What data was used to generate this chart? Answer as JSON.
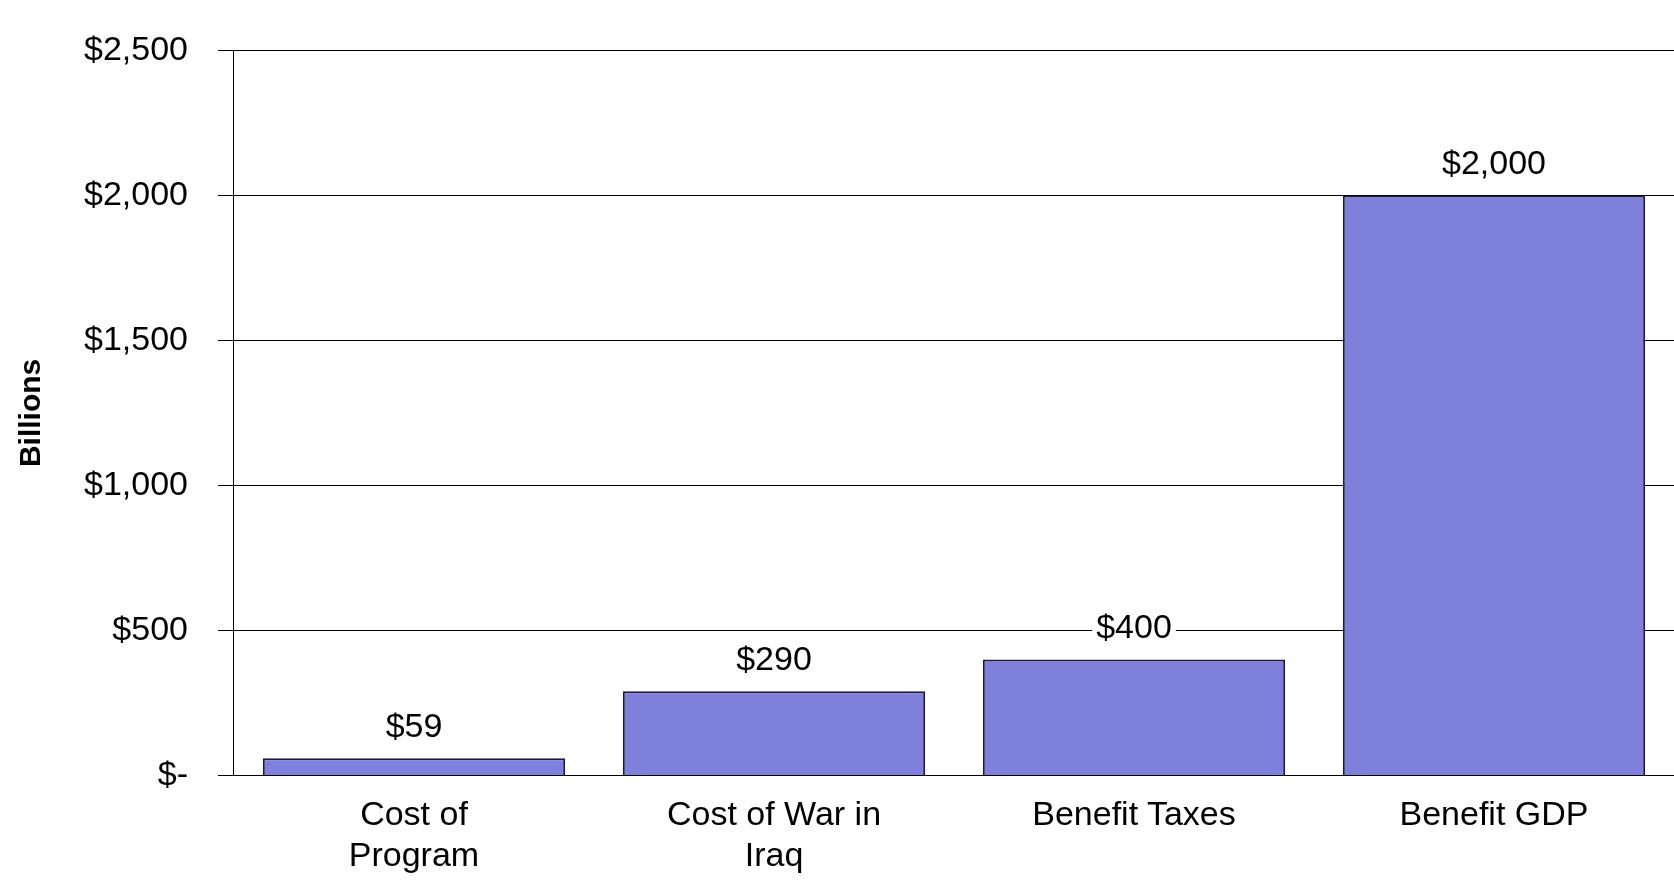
{
  "chart_data": {
    "type": "bar",
    "ylabel": "Billions",
    "categories": [
      "Cost of Program",
      "Cost of War in Iraq",
      "Benefit Taxes",
      "Benefit GDP"
    ],
    "values": [
      59,
      290,
      400,
      2000
    ],
    "value_labels": [
      "$59",
      "$290",
      "$400",
      "$2,000"
    ],
    "color": "#7f7fdc",
    "ylim": [
      0,
      2500
    ],
    "yticks": [
      {
        "value": 0,
        "label": "$-"
      },
      {
        "value": 500,
        "label": "$500"
      },
      {
        "value": 1000,
        "label": "$1,000"
      },
      {
        "value": 1500,
        "label": "$1,500"
      },
      {
        "value": 2000,
        "label": "$2,000"
      },
      {
        "value": 2500,
        "label": "$2,500"
      }
    ],
    "grid": "y",
    "legend": false
  }
}
